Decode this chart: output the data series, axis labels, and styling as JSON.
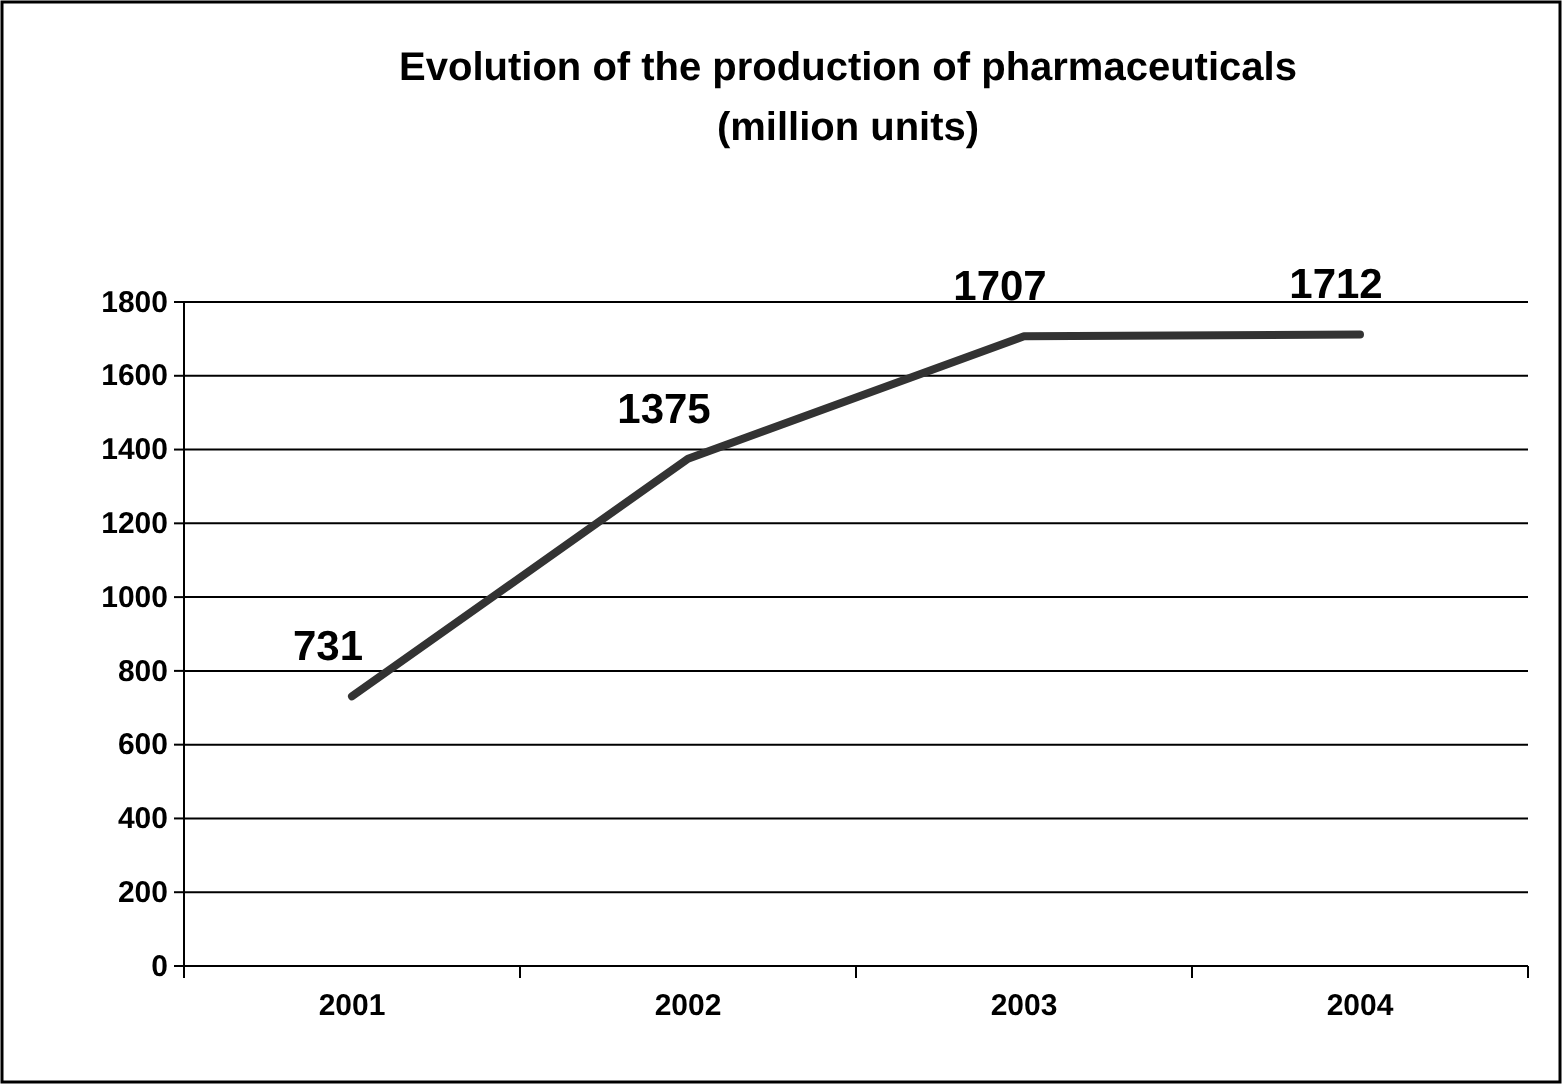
{
  "chart_data": {
    "type": "line",
    "title": "Evolution of the production of pharmaceuticals (million units)",
    "categories": [
      "2001",
      "2002",
      "2003",
      "2004"
    ],
    "series": [
      {
        "color": "#333333",
        "values": [
          731,
          1375,
          1707,
          1712
        ]
      }
    ],
    "ylim": [
      0,
      1800
    ],
    "yticks": [
      0,
      200,
      400,
      600,
      800,
      1000,
      1200,
      1400,
      1600,
      1800
    ],
    "grid": "y",
    "data_labels": true,
    "legend": false,
    "marker": "none",
    "line_style": "solid"
  }
}
